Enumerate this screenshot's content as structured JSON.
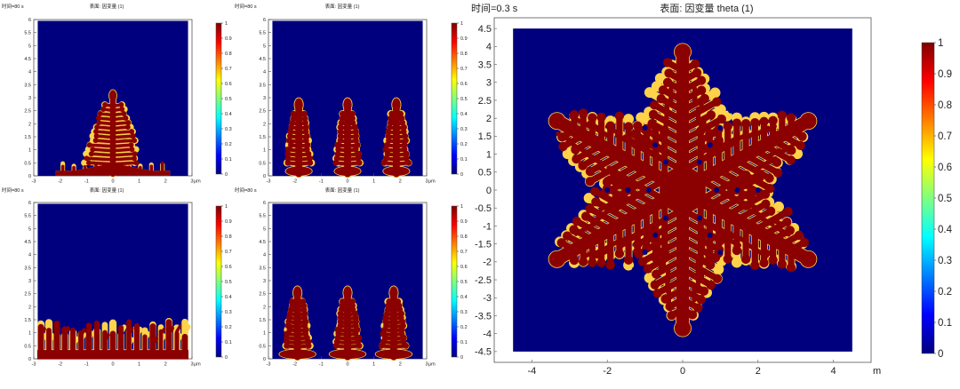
{
  "colormap": [
    "#00007f",
    "#0000ff",
    "#007fff",
    "#00ffff",
    "#7fff7f",
    "#ffff00",
    "#ff7f00",
    "#ff0000",
    "#7f0000"
  ],
  "colors": {
    "background": "#00007f",
    "solid": "#8b0000",
    "interface": "#ffd24a"
  },
  "chart_data": [
    {
      "type": "heatmap",
      "time_label": "时间=80 s",
      "title": "表面: 因变量 (1)",
      "unit": "μm",
      "xlim": [
        -3,
        3
      ],
      "ylim": [
        0,
        6
      ],
      "xticks": [
        "-3",
        "-2",
        "-1",
        "0",
        "1",
        "2",
        "3"
      ],
      "yticks": [
        "0",
        "0.5",
        "1",
        "1.5",
        "2",
        "2.5",
        "3",
        "3.5",
        "4",
        "4.5",
        "5",
        "5.5",
        "6"
      ],
      "colorbar": {
        "min": 0,
        "max": 1,
        "ticks": [
          "0",
          "0.1",
          "0.2",
          "0.3",
          "0.4",
          "0.5",
          "0.6",
          "0.7",
          "0.8",
          "0.9",
          "1"
        ]
      },
      "morphology": {
        "kind": "single_dendrite",
        "centers": [
          0
        ],
        "height": 3.2,
        "base_width": 4.3
      }
    },
    {
      "type": "heatmap",
      "time_label": "时间=80 s",
      "title": "表面: 因变量 (1)",
      "unit": "μm",
      "xlim": [
        -3,
        3
      ],
      "ylim": [
        0,
        6
      ],
      "xticks": [
        "-3",
        "-2",
        "-1",
        "0",
        "1",
        "2",
        "3"
      ],
      "yticks": [
        "0",
        "0.5",
        "1",
        "1.5",
        "2",
        "2.5",
        "3",
        "3.5",
        "4",
        "4.5",
        "5",
        "5.5",
        "6"
      ],
      "colorbar": {
        "min": 0,
        "max": 1,
        "ticks": [
          "0",
          "0.1",
          "0.2",
          "0.3",
          "0.4",
          "0.5",
          "0.6",
          "0.7",
          "0.8",
          "0.9",
          "1"
        ]
      },
      "morphology": {
        "kind": "three_dendrites",
        "centers": [
          -1.85,
          0,
          1.85
        ],
        "height": 2.85,
        "base_width": 1.0
      }
    },
    {
      "type": "heatmap",
      "time_label": "时间=80 s",
      "title": "表面: 因变量 (1)",
      "unit": "μm",
      "xlim": [
        -3,
        3
      ],
      "ylim": [
        0,
        6
      ],
      "xticks": [
        "-3",
        "-2",
        "-1",
        "0",
        "1",
        "2",
        "3"
      ],
      "yticks": [
        "0",
        "0.5",
        "1",
        "1.5",
        "2",
        "2.5",
        "3",
        "3.5",
        "4",
        "4.5",
        "5",
        "5.5",
        "6"
      ],
      "colorbar": {
        "min": 0,
        "max": 1,
        "ticks": [
          "0",
          "0.1",
          "0.2",
          "0.3",
          "0.4",
          "0.5",
          "0.6",
          "0.7",
          "0.8",
          "0.9",
          "1"
        ]
      },
      "morphology": {
        "kind": "columnar_front",
        "height": 1.4
      }
    },
    {
      "type": "heatmap",
      "time_label": "时间=80 s",
      "title": "表面: 因变量 (1)",
      "unit": "μm",
      "xlim": [
        -3,
        3
      ],
      "ylim": [
        0,
        6
      ],
      "xticks": [
        "-3",
        "-2",
        "-1",
        "0",
        "1",
        "2",
        "3"
      ],
      "yticks": [
        "0",
        "0.5",
        "1",
        "1.5",
        "2",
        "2.5",
        "3",
        "3.5",
        "4",
        "4.5",
        "5",
        "5.5",
        "6"
      ],
      "colorbar": {
        "min": 0,
        "max": 1,
        "ticks": [
          "0",
          "0.1",
          "0.2",
          "0.3",
          "0.4",
          "0.5",
          "0.6",
          "0.7",
          "0.8",
          "0.9",
          "1"
        ]
      },
      "morphology": {
        "kind": "three_dendrites",
        "centers": [
          -1.9,
          0,
          1.75
        ],
        "height": 2.65,
        "base_width": 1.4
      }
    },
    {
      "type": "heatmap",
      "time_label": "时间=0.3 s",
      "title": "表面: 因变量 theta (1)",
      "unit": "m",
      "xlim": [
        -5,
        5
      ],
      "ylim": [
        -4.8,
        4.8
      ],
      "xticks": [
        "-4",
        "-2",
        "0",
        "2",
        "4"
      ],
      "yticks": [
        "-4.5",
        "-4",
        "-3.5",
        "-3",
        "-2.5",
        "-2",
        "-1.5",
        "-1",
        "-0.5",
        "0",
        "0.5",
        "1",
        "1.5",
        "2",
        "2.5",
        "3",
        "3.5",
        "4",
        "4.5"
      ],
      "colorbar": {
        "min": 0,
        "max": 1,
        "ticks": [
          "0",
          "0.1",
          "0.2",
          "0.3",
          "0.4",
          "0.5",
          "0.6",
          "0.7",
          "0.8",
          "0.9",
          "1"
        ]
      },
      "morphology": {
        "kind": "six_arm_snowflake",
        "arm_length": 3.85,
        "domain": [
          -4.5,
          4.5
        ]
      }
    }
  ]
}
